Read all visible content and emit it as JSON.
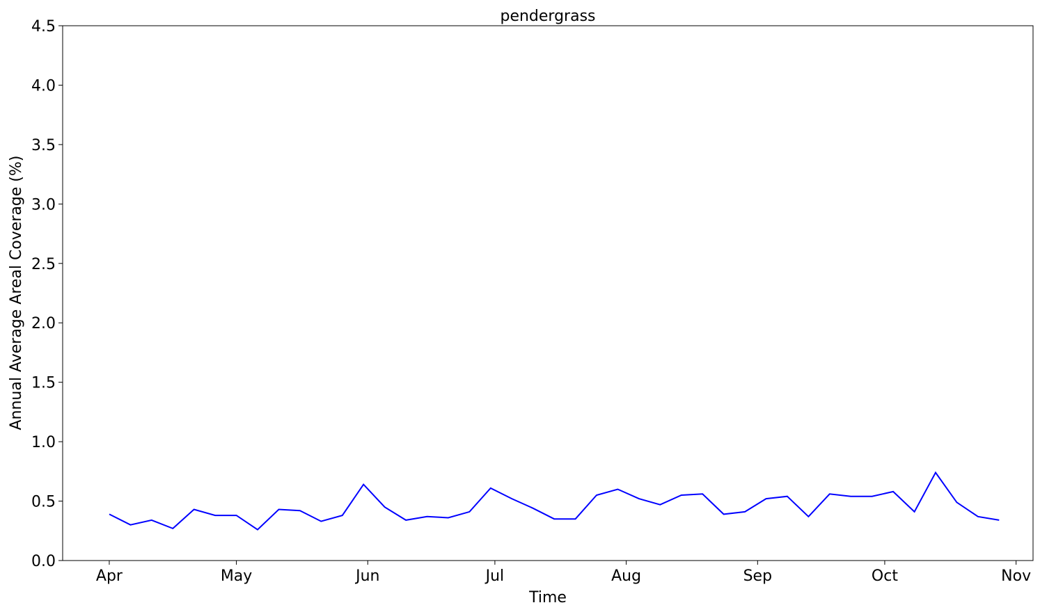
{
  "chart_data": {
    "type": "line",
    "title": "pendergrass",
    "xlabel": "Time",
    "ylabel": "Annual Average Areal Coverage (%)",
    "ylim": [
      0,
      4.5
    ],
    "yticks": [
      0.0,
      0.5,
      1.0,
      1.5,
      2.0,
      2.5,
      3.0,
      3.5,
      4.0,
      4.5
    ],
    "xlim": [
      "2001-03-21",
      "2001-11-05"
    ],
    "xticks": [
      {
        "date": "2001-04-01",
        "label": "Apr"
      },
      {
        "date": "2001-05-01",
        "label": "May"
      },
      {
        "date": "2001-06-01",
        "label": "Jun"
      },
      {
        "date": "2001-07-01",
        "label": "Jul"
      },
      {
        "date": "2001-08-01",
        "label": "Aug"
      },
      {
        "date": "2001-09-01",
        "label": "Sep"
      },
      {
        "date": "2001-10-01",
        "label": "Oct"
      },
      {
        "date": "2001-11-01",
        "label": "Nov"
      }
    ],
    "grid": false,
    "series": [
      {
        "color": "#0000ff",
        "x": [
          "2001-04-01",
          "2001-04-06",
          "2001-04-11",
          "2001-04-16",
          "2001-04-21",
          "2001-04-26",
          "2001-05-01",
          "2001-05-06",
          "2001-05-11",
          "2001-05-16",
          "2001-05-21",
          "2001-05-26",
          "2001-05-31",
          "2001-06-05",
          "2001-06-10",
          "2001-06-15",
          "2001-06-20",
          "2001-06-25",
          "2001-06-30",
          "2001-07-05",
          "2001-07-10",
          "2001-07-15",
          "2001-07-20",
          "2001-07-25",
          "2001-07-30",
          "2001-08-04",
          "2001-08-09",
          "2001-08-14",
          "2001-08-19",
          "2001-08-24",
          "2001-08-29",
          "2001-09-03",
          "2001-09-08",
          "2001-09-13",
          "2001-09-18",
          "2001-09-23",
          "2001-09-28",
          "2001-10-03",
          "2001-10-08",
          "2001-10-13",
          "2001-10-18",
          "2001-10-23",
          "2001-10-28"
        ],
        "values": [
          0.39,
          0.3,
          0.34,
          0.27,
          0.43,
          0.38,
          0.38,
          0.26,
          0.43,
          0.42,
          0.33,
          0.38,
          0.64,
          0.45,
          0.34,
          0.37,
          0.36,
          0.41,
          0.61,
          0.52,
          0.44,
          0.35,
          0.35,
          0.55,
          0.6,
          0.52,
          0.47,
          0.55,
          0.56,
          0.39,
          0.41,
          0.52,
          0.54,
          0.37,
          0.56,
          0.54,
          0.54,
          0.58,
          0.41,
          0.74,
          0.49,
          0.37,
          0.34
        ]
      }
    ]
  }
}
